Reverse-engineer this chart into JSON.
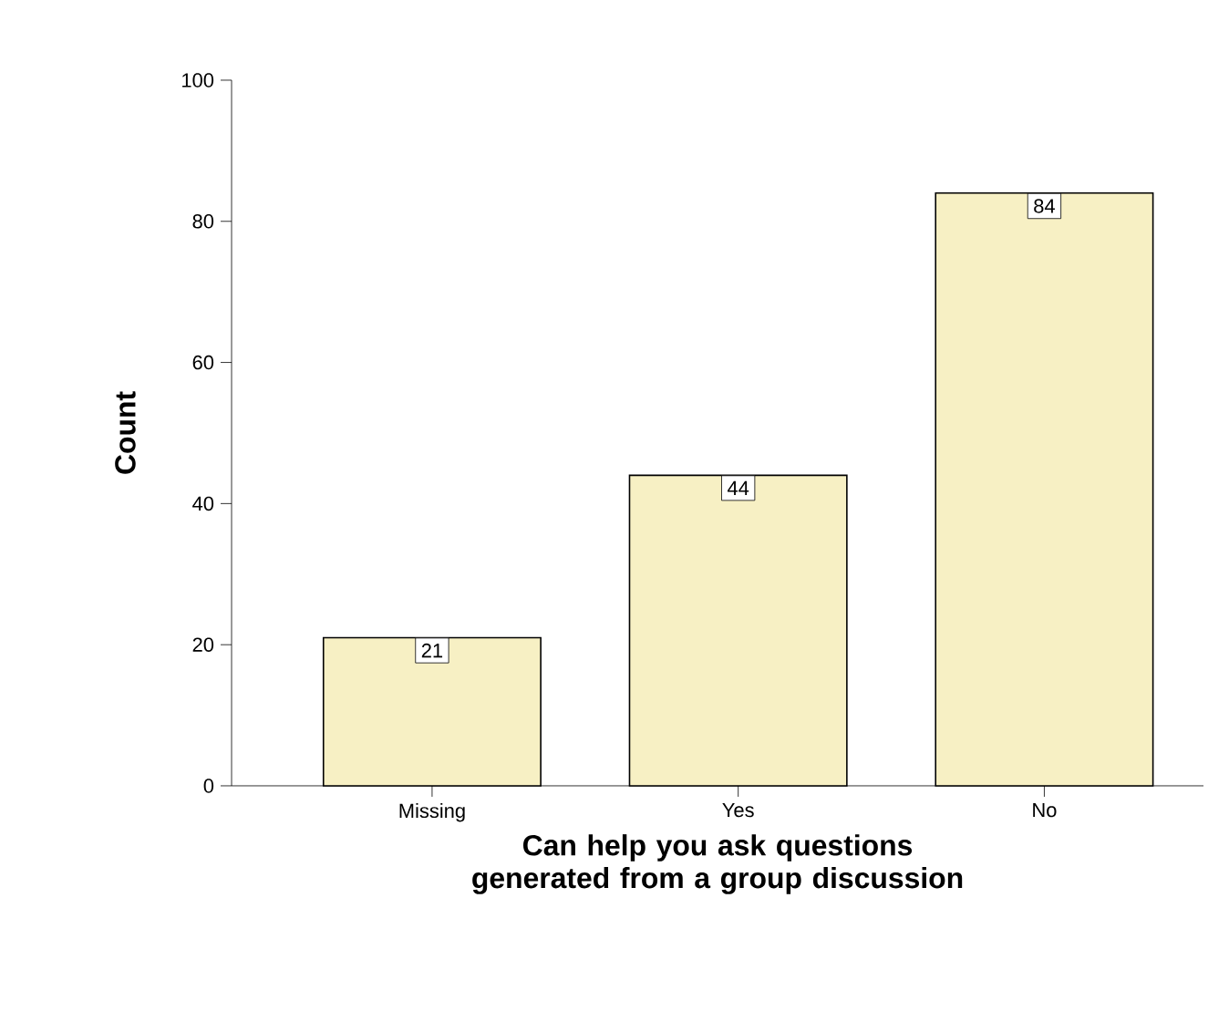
{
  "chart_data": {
    "type": "bar",
    "xlabel": "Can help you ask questions generated from a group discussion",
    "ylabel": "Count",
    "categories": [
      "Missing",
      "Yes",
      "No"
    ],
    "values": [
      21,
      44,
      84
    ],
    "color": "#f7f0c4",
    "ylim": [
      0,
      100
    ],
    "yticks": [
      0,
      20,
      40,
      60,
      80,
      100
    ],
    "data_labels": true
  }
}
